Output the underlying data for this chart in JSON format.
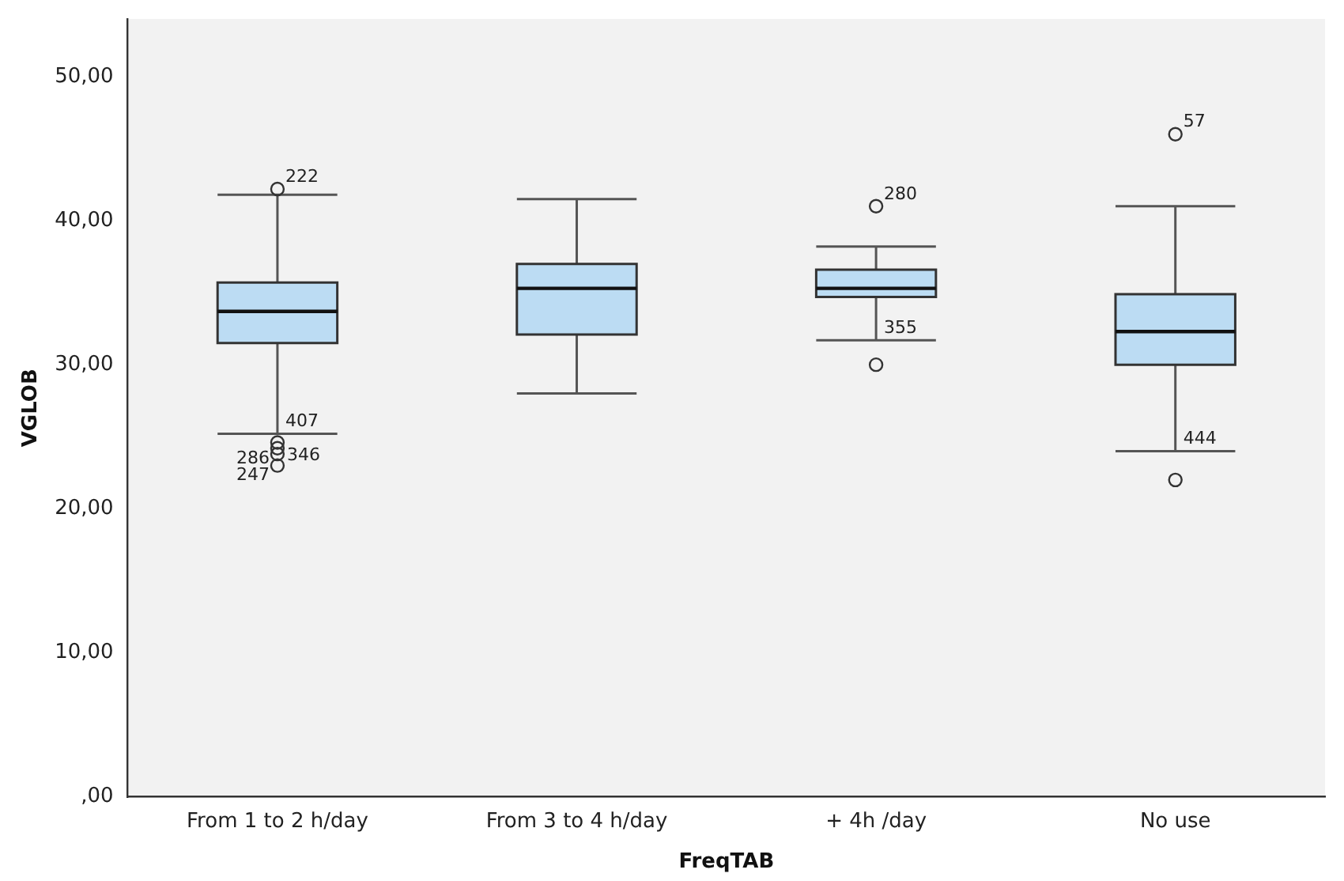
{
  "chart_data": {
    "type": "box",
    "xlabel": "FreqTAB",
    "ylabel": "VGLOB",
    "categories": [
      "From 1 to 2 h/day",
      "From 3 to 4 h/day",
      "+ 4h /day",
      "No use"
    ],
    "color": "#bcdcf3",
    "boxes": [
      {
        "low": 25.2,
        "q1": 31.5,
        "median": 33.7,
        "q3": 35.7,
        "high": 41.8,
        "outliers": [
          42.2,
          24.6,
          24.2,
          23.8,
          23.0
        ]
      },
      {
        "low": 28.0,
        "q1": 32.1,
        "median": 35.3,
        "q3": 37.0,
        "high": 41.5
      },
      {
        "low": 31.7,
        "q1": 34.7,
        "median": 35.3,
        "q3": 36.6,
        "high": 38.2,
        "outliers": [
          41.0,
          30.0
        ]
      },
      {
        "low": 24.0,
        "q1": 30.0,
        "median": 32.3,
        "q3": 34.9,
        "high": 41.0,
        "outliers": [
          46.0,
          22.0
        ]
      }
    ],
    "ylim": [
      0,
      54
    ],
    "yticks": [
      {
        "value": 0,
        "label": ",00"
      },
      {
        "value": 10,
        "label": "10,00"
      },
      {
        "value": 20,
        "label": "20,00"
      },
      {
        "value": 30,
        "label": "30,00"
      },
      {
        "value": 40,
        "label": "40,00"
      },
      {
        "value": 50,
        "label": "50,00"
      }
    ],
    "grid": false,
    "legend": false,
    "annotations": [
      "222",
      "407",
      "286",
      "346",
      "247",
      "280",
      "355",
      "57",
      "444"
    ]
  }
}
